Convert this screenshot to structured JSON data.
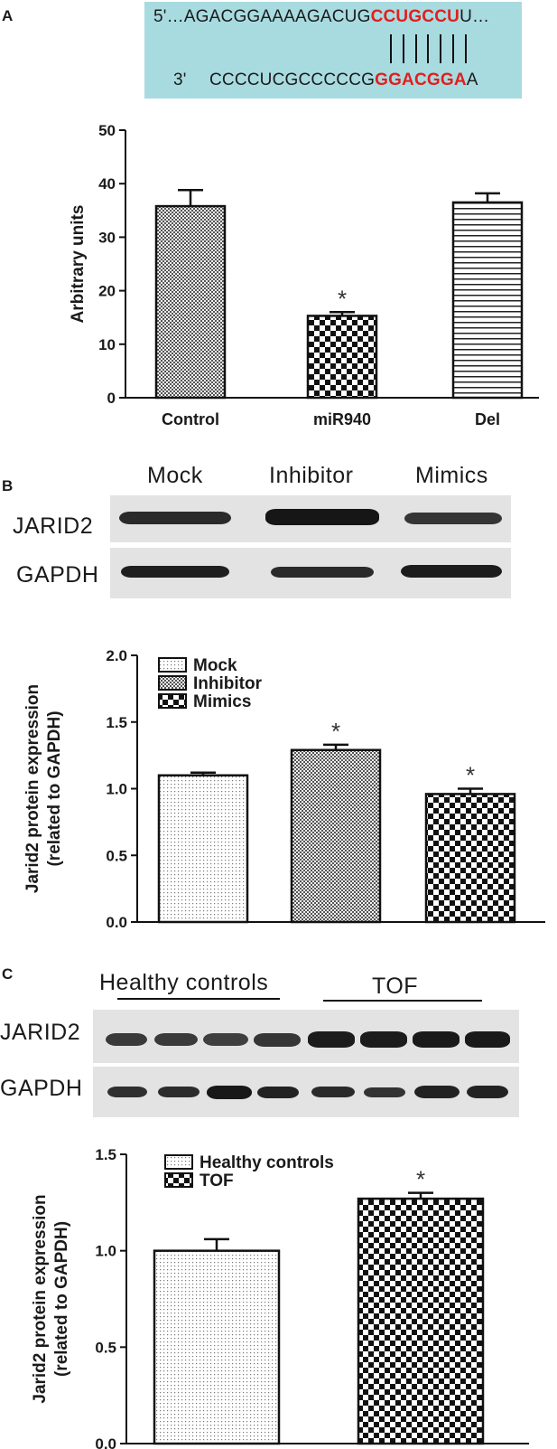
{
  "panels": {
    "a": "A",
    "b": "B",
    "c": "C"
  },
  "sequence": {
    "top_prefix": "5'…AGACGGAAAAGACUG",
    "top_highlight": "CCUGCCU",
    "top_suffix": "U…",
    "bottom_label": "3'",
    "bottom_prefix": "CCCCUCGCCCCCG",
    "bottom_highlight": "GGACGGA",
    "bottom_suffix": "A",
    "pair_count": 7
  },
  "blot_b": {
    "lanes": [
      "Mock",
      "Inhibitor",
      "Mimics"
    ],
    "rows": [
      "JARID2",
      "GAPDH"
    ]
  },
  "blot_c": {
    "groups": [
      "Healthy controls",
      "TOF"
    ],
    "rows": [
      "JARID2",
      "GAPDH"
    ]
  },
  "colors": {
    "highlight": "#e01f1f",
    "sequence_box": "#a8dbe0",
    "ink": "#1a1a1a"
  },
  "chart_data": [
    {
      "type": "bar",
      "categories": [
        "Control",
        "miR940",
        "Del"
      ],
      "values": [
        35.8,
        15.3,
        36.5
      ],
      "errors": [
        3.0,
        0.7,
        1.7
      ],
      "significant": [
        false,
        true,
        false
      ],
      "ylabel": "Arbitrary units",
      "ylim": [
        0,
        50
      ],
      "yticks": [
        0,
        10,
        20,
        30,
        40,
        50
      ],
      "ytick_labels": [
        "0",
        "10",
        "20",
        "30",
        "40",
        "50"
      ],
      "patterns": [
        "crosshatch",
        "checker",
        "horizontal"
      ],
      "legend": null
    },
    {
      "type": "bar",
      "categories": [
        "Mock",
        "Inhibitor",
        "Mimics"
      ],
      "values": [
        1.1,
        1.29,
        0.96
      ],
      "errors": [
        0.02,
        0.04,
        0.04
      ],
      "significant": [
        false,
        true,
        true
      ],
      "ylabel": "Jarid2 protein expression",
      "ylabel2": "(related to GAPDH)",
      "ylim": [
        0,
        2.0
      ],
      "yticks": [
        0,
        0.5,
        1.0,
        1.5,
        2.0
      ],
      "ytick_labels": [
        "0.0",
        "0.5",
        "1.0",
        "1.5",
        "2.0"
      ],
      "patterns": [
        "dots",
        "crosshatch",
        "checker"
      ],
      "legend": [
        "Mock",
        "Inhibitor",
        "Mimics"
      ]
    },
    {
      "type": "bar",
      "categories": [
        "Healthy controls",
        "TOF"
      ],
      "values": [
        1.0,
        1.27
      ],
      "errors": [
        0.06,
        0.03
      ],
      "significant": [
        false,
        true
      ],
      "ylabel": "Jarid2 protein expression",
      "ylabel2": "(related to GAPDH)",
      "ylim": [
        0,
        1.5
      ],
      "yticks": [
        0,
        0.5,
        1.0,
        1.5
      ],
      "ytick_labels": [
        "0.0",
        "0.5",
        "1.0",
        "1.5"
      ],
      "patterns": [
        "dots",
        "checker"
      ],
      "legend": [
        "Healthy controls",
        "TOF"
      ]
    }
  ]
}
